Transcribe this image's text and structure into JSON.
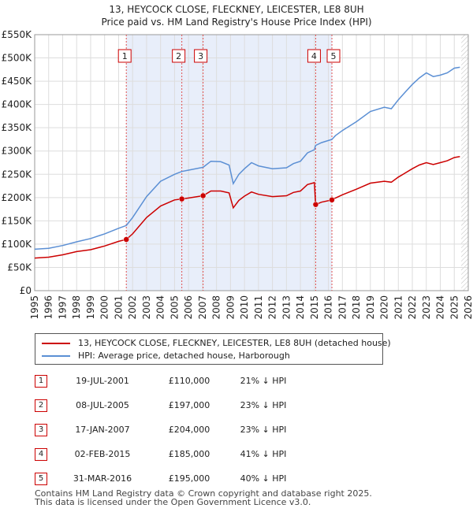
{
  "chart_data": {
    "type": "line",
    "title": "13, HEYCOCK CLOSE, FLECKNEY, LEICESTER, LE8 8UH",
    "subtitle": "Price paid vs. HM Land Registry's House Price Index (HPI)",
    "xlim": [
      1995,
      2026
    ],
    "ylim": [
      0,
      550000
    ],
    "y_ticks": [
      0,
      50000,
      100000,
      150000,
      200000,
      250000,
      300000,
      350000,
      400000,
      450000,
      500000,
      550000
    ],
    "y_tick_labels": [
      "£0",
      "£50K",
      "£100K",
      "£150K",
      "£200K",
      "£250K",
      "£300K",
      "£350K",
      "£400K",
      "£450K",
      "£500K",
      "£550K"
    ],
    "x_ticks": [
      1995,
      1996,
      1997,
      1998,
      1999,
      2000,
      2001,
      2002,
      2003,
      2004,
      2005,
      2006,
      2007,
      2008,
      2009,
      2010,
      2011,
      2012,
      2013,
      2014,
      2015,
      2016,
      2017,
      2018,
      2019,
      2020,
      2021,
      2022,
      2023,
      2024,
      2025,
      2026
    ],
    "grid": true,
    "series": [
      {
        "name": "13, HEYCOCK CLOSE, FLECKNEY, LEICESTER, LE8 8UH (detached house)",
        "color": "#cc0000",
        "x": [
          1995.0,
          1996.0,
          1997.0,
          1998.0,
          1999.0,
          2000.0,
          2001.0,
          2001.55,
          2002.0,
          2003.0,
          2004.0,
          2005.0,
          2005.52,
          2006.0,
          2007.04,
          2007.6,
          2008.3,
          2008.9,
          2009.2,
          2009.6,
          2010.0,
          2010.5,
          2011.0,
          2012.0,
          2013.0,
          2013.5,
          2014.0,
          2014.5,
          2015.0,
          2015.09,
          2015.5,
          2016.25,
          2016.5,
          2017.0,
          2018.0,
          2019.0,
          2020.0,
          2020.5,
          2021.0,
          2021.5,
          2022.0,
          2022.5,
          2023.0,
          2023.5,
          2024.0,
          2024.5,
          2025.0,
          2025.4
        ],
        "y": [
          70000,
          72000,
          77000,
          84000,
          88000,
          96000,
          106000,
          110000,
          122000,
          157000,
          182000,
          195000,
          197000,
          199000,
          204000,
          214000,
          214000,
          210000,
          178000,
          194000,
          203000,
          212000,
          207000,
          202000,
          204000,
          211000,
          214000,
          228000,
          232000,
          185000,
          190000,
          195000,
          199000,
          206000,
          218000,
          231000,
          235000,
          233000,
          244000,
          253000,
          262000,
          270000,
          275000,
          271000,
          275000,
          279000,
          286000,
          288000
        ]
      },
      {
        "name": "HPI: Average price, detached house, Harborough",
        "color": "#5b8fd4",
        "x": [
          1995.0,
          1996.0,
          1997.0,
          1998.0,
          1999.0,
          2000.0,
          2001.0,
          2001.55,
          2002.0,
          2003.0,
          2004.0,
          2005.0,
          2005.52,
          2006.0,
          2007.04,
          2007.6,
          2008.3,
          2008.9,
          2009.2,
          2009.6,
          2010.0,
          2010.5,
          2011.0,
          2012.0,
          2013.0,
          2013.5,
          2014.0,
          2014.5,
          2015.0,
          2015.09,
          2015.5,
          2016.25,
          2016.5,
          2017.0,
          2018.0,
          2019.0,
          2020.0,
          2020.5,
          2021.0,
          2021.5,
          2022.0,
          2022.5,
          2023.0,
          2023.5,
          2024.0,
          2024.5,
          2025.0,
          2025.4
        ],
        "y": [
          89000,
          91000,
          97000,
          105000,
          112000,
          122000,
          134000,
          140000,
          157000,
          202000,
          235000,
          250000,
          256000,
          259000,
          265000,
          278000,
          277000,
          270000,
          230000,
          250000,
          262000,
          275000,
          268000,
          262000,
          264000,
          273000,
          278000,
          296000,
          303000,
          312000,
          318000,
          325000,
          333000,
          344000,
          363000,
          385000,
          394000,
          391000,
          410000,
          427000,
          443000,
          457000,
          468000,
          460000,
          463000,
          468000,
          478000,
          480000
        ]
      }
    ],
    "sales": [
      {
        "num": "1",
        "year": 2001.55,
        "price": 110000,
        "date": "19-JUL-2001",
        "price_label": "£110,000",
        "hpi": "21% ↓ HPI"
      },
      {
        "num": "2",
        "year": 2005.52,
        "price": 197000,
        "date": "08-JUL-2005",
        "price_label": "£197,000",
        "hpi": "23% ↓ HPI"
      },
      {
        "num": "3",
        "year": 2007.04,
        "price": 204000,
        "date": "17-JAN-2007",
        "price_label": "£204,000",
        "hpi": "23% ↓ HPI"
      },
      {
        "num": "4",
        "year": 2015.09,
        "price": 185000,
        "date": "02-FEB-2015",
        "price_label": "£185,000",
        "hpi": "41% ↓ HPI"
      },
      {
        "num": "5",
        "year": 2016.25,
        "price": 195000,
        "date": "31-MAR-2016",
        "price_label": "£195,000",
        "hpi": "40% ↓ HPI"
      }
    ],
    "forecast_start": 2025.5
  },
  "legend": {
    "red_label": "13, HEYCOCK CLOSE, FLECKNEY, LEICESTER, LE8 8UH (detached house)",
    "blue_label": "HPI: Average price, detached house, Harborough"
  },
  "footer": {
    "line1": "Contains HM Land Registry data © Crown copyright and database right 2025.",
    "line2": "This data is licensed under the Open Government Licence v3.0."
  }
}
